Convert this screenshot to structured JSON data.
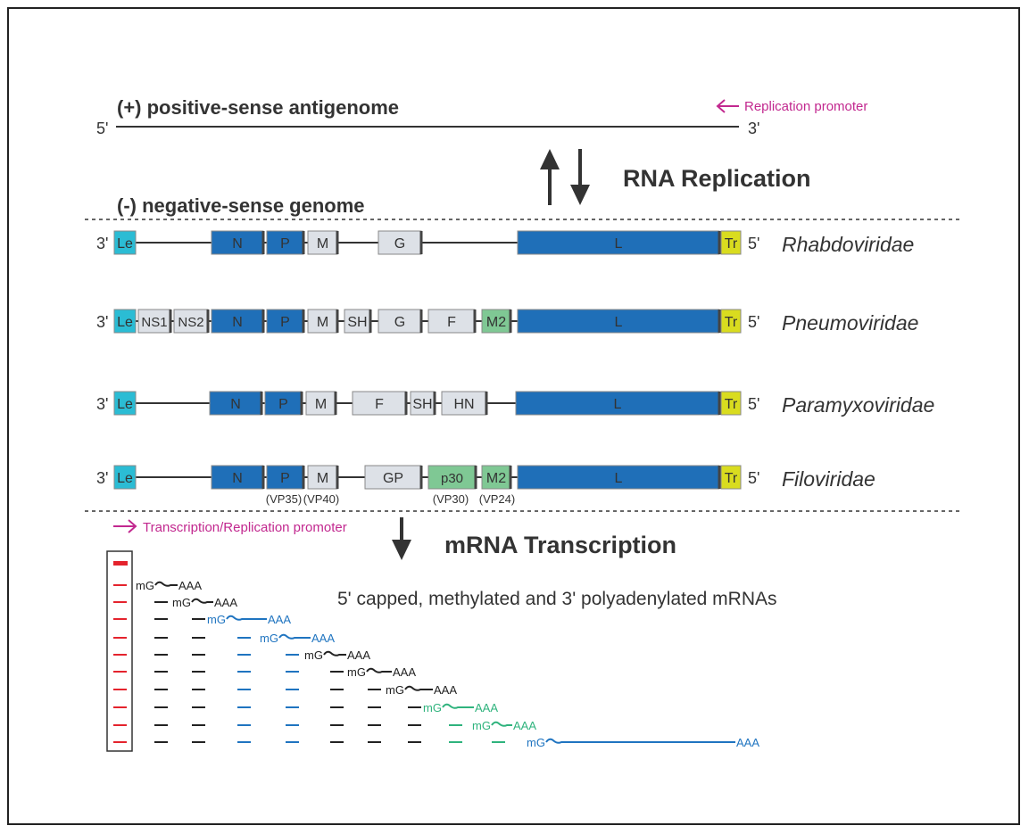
{
  "top": {
    "antigenome_label": "(+) positive-sense antigenome",
    "five_prime": "5'",
    "three_prime": "3'",
    "replication_promoter": "Replication promoter",
    "rna_replication": "RNA Replication",
    "genome_label": "(-) negative-sense genome"
  },
  "colors": {
    "blue": "#1f6fb8",
    "grey": "#dde1e7",
    "cyan": "#2bbcd4",
    "green": "#7fc894",
    "yellow": "#d9dc1f",
    "magenta": "#c2288f",
    "red": "#e4232d",
    "black": "#222222",
    "mrna_blue": "#1f74c0",
    "mrna_green": "#2fb37d"
  },
  "genomes": [
    {
      "family": "Rhabdoviridae",
      "genes": [
        {
          "label": "Le",
          "type": "cyan"
        },
        {
          "label": "N",
          "type": "blue"
        },
        {
          "label": "P",
          "type": "blue"
        },
        {
          "label": "M",
          "type": "grey"
        },
        {
          "label": "G",
          "type": "grey"
        },
        {
          "label": "L",
          "type": "blue"
        },
        {
          "label": "Tr",
          "type": "yellow"
        }
      ]
    },
    {
      "family": "Pneumoviridae",
      "genes": [
        {
          "label": "Le",
          "type": "cyan"
        },
        {
          "label": "NS1",
          "type": "grey"
        },
        {
          "label": "NS2",
          "type": "grey"
        },
        {
          "label": "N",
          "type": "blue"
        },
        {
          "label": "P",
          "type": "blue"
        },
        {
          "label": "M",
          "type": "grey"
        },
        {
          "label": "SH",
          "type": "grey"
        },
        {
          "label": "G",
          "type": "grey"
        },
        {
          "label": "F",
          "type": "grey"
        },
        {
          "label": "M2",
          "type": "green"
        },
        {
          "label": "L",
          "type": "blue"
        },
        {
          "label": "Tr",
          "type": "yellow"
        }
      ]
    },
    {
      "family": "Paramyxoviridae",
      "genes": [
        {
          "label": "Le",
          "type": "cyan"
        },
        {
          "label": "N",
          "type": "blue"
        },
        {
          "label": "P",
          "type": "blue"
        },
        {
          "label": "M",
          "type": "grey"
        },
        {
          "label": "F",
          "type": "grey"
        },
        {
          "label": "SH",
          "type": "grey"
        },
        {
          "label": "HN",
          "type": "grey"
        },
        {
          "label": "L",
          "type": "blue"
        },
        {
          "label": "Tr",
          "type": "yellow"
        }
      ]
    },
    {
      "family": "Filoviridae",
      "genes": [
        {
          "label": "Le",
          "type": "cyan"
        },
        {
          "label": "N",
          "type": "blue"
        },
        {
          "label": "P",
          "type": "blue",
          "sub": "(VP35)"
        },
        {
          "label": "M",
          "type": "grey",
          "sub": "(VP40)"
        },
        {
          "label": "GP",
          "type": "grey"
        },
        {
          "label": "p30",
          "type": "green",
          "sub": "(VP30)"
        },
        {
          "label": "M2",
          "type": "green",
          "sub": "(VP24)"
        },
        {
          "label": "L",
          "type": "blue"
        },
        {
          "label": "Tr",
          "type": "yellow"
        }
      ]
    }
  ],
  "bottom": {
    "tr_promoter": "Transcription/Replication promoter",
    "mrna_transcription": "mRNA Transcription",
    "mrna_description": "5' capped, methylated and 3' polyadenylated mRNAs",
    "cap": "mG",
    "polyA": "AAA",
    "mrna_colors": [
      "black",
      "black",
      "blue",
      "blue",
      "black",
      "black",
      "black",
      "green",
      "green",
      "blue"
    ]
  }
}
